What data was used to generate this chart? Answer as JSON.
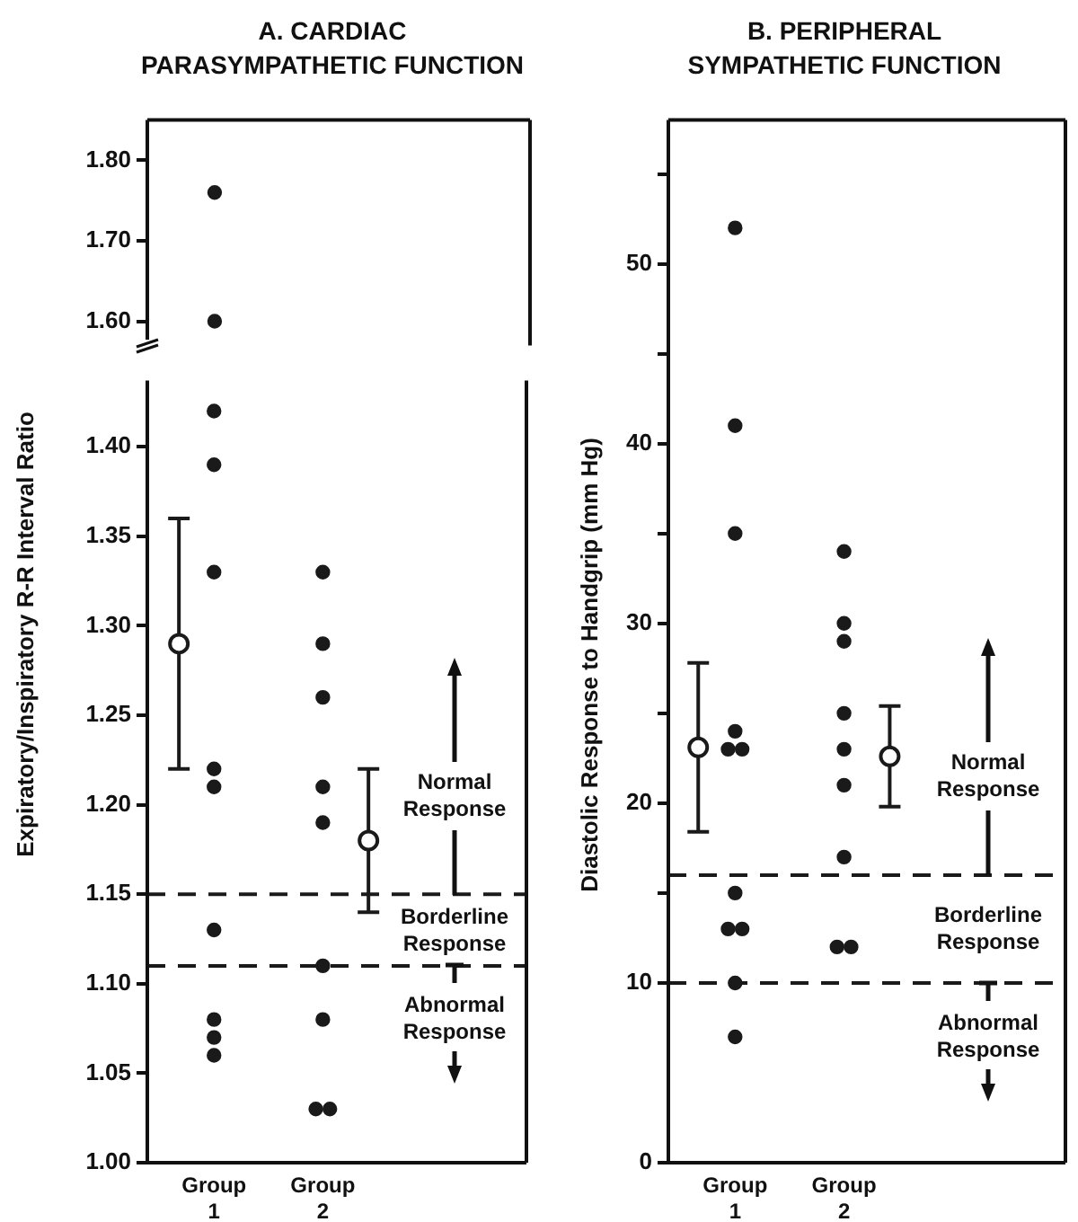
{
  "chart_data": [
    {
      "type": "scatter",
      "title": "A. CARDIAC\nPARASYMPATHETIC FUNCTION",
      "categories": [
        null,
        null
      ],
      "ylim": [
        1.57,
        1.85
      ],
      "yticks": [
        {
          "value": 1.6,
          "label": "1.60"
        },
        {
          "value": 1.7,
          "label": "1.70"
        },
        {
          "value": 1.8,
          "label": "1.80"
        }
      ],
      "grid": false,
      "legend": false,
      "marker": "circle",
      "series": [
        {
          "color": "#1a1a1a",
          "values": [
            1.76,
            null
          ]
        },
        {
          "color": "#1a1a1a",
          "values": [
            1.6,
            null
          ]
        }
      ]
    },
    {
      "type": "scatter",
      "ylabel": "Expiratory/Inspiratory R-R Interval Ratio",
      "categories": [
        "Group 1",
        "Group 2"
      ],
      "ylim": [
        1.0,
        1.437
      ],
      "yticks": [
        {
          "value": 1.0,
          "label": "1.00"
        },
        {
          "value": 1.05,
          "label": "1.05"
        },
        {
          "value": 1.1,
          "label": "1.10"
        },
        {
          "value": 1.15,
          "label": "1.15"
        },
        {
          "value": 1.2,
          "label": "1.20"
        },
        {
          "value": 1.25,
          "label": "1.25"
        },
        {
          "value": 1.3,
          "label": "1.30"
        },
        {
          "value": 1.35,
          "label": "1.35"
        },
        {
          "value": 1.4,
          "label": "1.40"
        }
      ],
      "grid": false,
      "legend": false,
      "marker": "circle",
      "ref_lines": [
        {
          "axis": "y",
          "value": 1.15,
          "line_style": "dashed",
          "color": "#1a1a1a"
        },
        {
          "axis": "y",
          "value": 1.11,
          "line_style": "dashed",
          "color": "#1a1a1a"
        }
      ],
      "annotations": [
        "Normal Response",
        "Borderline Response",
        "Abnormal Response"
      ],
      "series": [
        {
          "color": "#1a1a1a",
          "values": [
            1.42,
            1.33
          ]
        },
        {
          "color": "#1a1a1a",
          "values": [
            1.39,
            1.29
          ]
        },
        {
          "color": "#1a1a1a",
          "values": [
            1.33,
            1.26
          ]
        },
        {
          "color": "#1a1a1a",
          "values": [
            1.22,
            1.21
          ]
        },
        {
          "color": "#1a1a1a",
          "values": [
            1.21,
            1.19
          ]
        },
        {
          "color": "#1a1a1a",
          "values": [
            1.13,
            1.11
          ]
        },
        {
          "color": "#1a1a1a",
          "values": [
            1.08,
            1.08
          ]
        },
        {
          "color": "#1a1a1a",
          "values": [
            1.07,
            1.03
          ]
        },
        {
          "color": "#1a1a1a",
          "values": [
            1.06,
            1.03
          ]
        },
        {
          "color": "#1a1a1a",
          "values": [
            1.29,
            1.18
          ],
          "errors": [
            0.07,
            0.04
          ]
        }
      ]
    },
    {
      "type": "scatter",
      "title": "B. PERIPHERAL\nSYMPATHETIC FUNCTION",
      "ylabel": "Diastolic Response to Handgrip (mm Hg)",
      "categories": [
        "Group 1",
        "Group 2"
      ],
      "ylim": [
        0,
        58
      ],
      "yticks": [
        0,
        10,
        20,
        30,
        40,
        50,
        {
          "value": 15,
          "label": null
        },
        {
          "value": 25,
          "label": null
        },
        {
          "value": 35,
          "label": null
        },
        {
          "value": 45,
          "label": null
        },
        {
          "value": 55,
          "label": null
        }
      ],
      "grid": false,
      "legend": false,
      "marker": "circle",
      "ref_lines": [
        {
          "axis": "y",
          "value": 16,
          "line_style": "dashed",
          "color": "#1a1a1a"
        },
        {
          "axis": "y",
          "value": 10,
          "line_style": "dashed",
          "color": "#1a1a1a"
        }
      ],
      "annotations": [
        "Normal Response",
        "Borderline Response",
        "Abnormal Response"
      ],
      "series": [
        {
          "color": "#1a1a1a",
          "values": [
            52,
            34
          ]
        },
        {
          "color": "#1a1a1a",
          "values": [
            41,
            30
          ]
        },
        {
          "color": "#1a1a1a",
          "values": [
            35,
            29
          ]
        },
        {
          "color": "#1a1a1a",
          "values": [
            24,
            25
          ]
        },
        {
          "color": "#1a1a1a",
          "values": [
            23,
            23
          ]
        },
        {
          "color": "#1a1a1a",
          "values": [
            23,
            21
          ]
        },
        {
          "color": "#1a1a1a",
          "values": [
            15,
            17
          ]
        },
        {
          "color": "#1a1a1a",
          "values": [
            13,
            12
          ]
        },
        {
          "color": "#1a1a1a",
          "values": [
            13,
            12
          ]
        },
        {
          "color": "#1a1a1a",
          "values": [
            10,
            null
          ]
        },
        {
          "color": "#1a1a1a",
          "values": [
            7,
            null
          ]
        },
        {
          "color": "#1a1a1a",
          "values": [
            23.1,
            22.6
          ],
          "errors": [
            4.7,
            2.8
          ]
        }
      ]
    }
  ]
}
